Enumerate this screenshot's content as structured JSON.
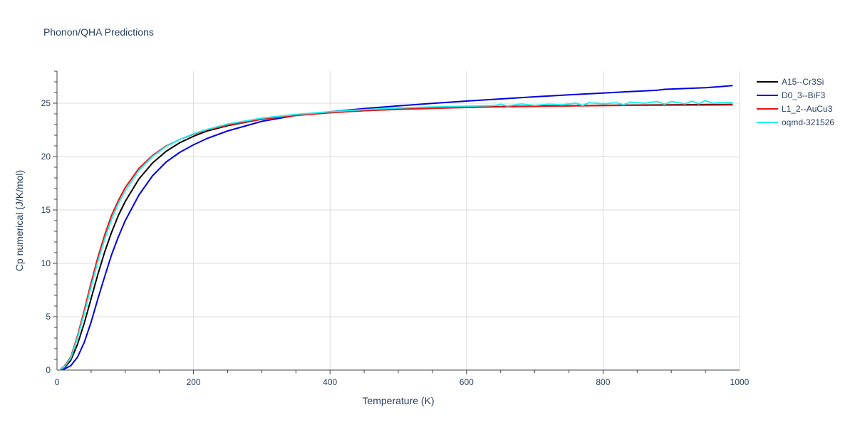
{
  "chart_data": {
    "type": "line",
    "title": "Phonon/QHA Predictions",
    "xlabel": "Temperature (K)",
    "ylabel": "Cp numerical (J/K/mol)",
    "xlim": [
      0,
      1000
    ],
    "ylim": [
      0,
      28
    ],
    "xticks": [
      0,
      200,
      400,
      600,
      800,
      1000
    ],
    "yticks": [
      0,
      5,
      10,
      15,
      20,
      25
    ],
    "grid": true,
    "legend_position": "top-right",
    "series": [
      {
        "name": "A15--Cr3Si",
        "color": "#000000",
        "x": [
          5,
          10,
          20,
          30,
          40,
          50,
          60,
          70,
          80,
          90,
          100,
          120,
          140,
          160,
          180,
          200,
          220,
          250,
          300,
          350,
          400,
          450,
          500,
          550,
          600,
          650,
          700,
          750,
          800,
          850,
          900,
          950,
          990
        ],
        "y": [
          0.05,
          0.15,
          0.9,
          2.4,
          4.4,
          6.7,
          9.0,
          11.1,
          12.9,
          14.5,
          15.8,
          17.9,
          19.4,
          20.5,
          21.3,
          21.9,
          22.4,
          22.9,
          23.5,
          23.9,
          24.15,
          24.3,
          24.45,
          24.55,
          24.62,
          24.68,
          24.72,
          24.76,
          24.8,
          24.83,
          24.85,
          24.87,
          24.88
        ]
      },
      {
        "name": "D0_3--BiF3",
        "color": "#0000dd",
        "x": [
          5,
          10,
          20,
          30,
          40,
          50,
          60,
          70,
          80,
          90,
          100,
          120,
          140,
          160,
          180,
          200,
          220,
          250,
          300,
          350,
          400,
          450,
          500,
          550,
          600,
          650,
          700,
          750,
          800,
          850,
          880,
          890,
          950,
          990
        ],
        "y": [
          0.02,
          0.08,
          0.4,
          1.2,
          2.6,
          4.5,
          6.7,
          8.8,
          10.8,
          12.5,
          14.0,
          16.4,
          18.2,
          19.5,
          20.4,
          21.1,
          21.7,
          22.4,
          23.3,
          23.85,
          24.2,
          24.5,
          24.75,
          24.98,
          25.2,
          25.4,
          25.6,
          25.78,
          25.95,
          26.12,
          26.22,
          26.3,
          26.45,
          26.65
        ]
      },
      {
        "name": "L1_2--AuCu3",
        "color": "#ee1111",
        "x": [
          5,
          10,
          20,
          30,
          40,
          50,
          60,
          70,
          80,
          90,
          100,
          120,
          140,
          160,
          180,
          200,
          220,
          250,
          300,
          350,
          400,
          450,
          500,
          550,
          600,
          650,
          700,
          750,
          800,
          850,
          900,
          950,
          990
        ],
        "y": [
          0.1,
          0.3,
          1.2,
          3.2,
          5.6,
          8.2,
          10.6,
          12.7,
          14.5,
          15.9,
          17.1,
          18.9,
          20.1,
          21.0,
          21.6,
          22.1,
          22.5,
          22.95,
          23.5,
          23.85,
          24.1,
          24.3,
          24.42,
          24.52,
          24.6,
          24.66,
          24.7,
          24.74,
          24.77,
          24.8,
          24.82,
          24.83,
          24.84
        ]
      },
      {
        "name": "oqmd-321526",
        "color": "#22eeee",
        "x": [
          5,
          10,
          20,
          30,
          40,
          50,
          60,
          70,
          80,
          90,
          100,
          120,
          140,
          160,
          180,
          200,
          220,
          250,
          300,
          350,
          400,
          450,
          500,
          550,
          600,
          640,
          650,
          660,
          680,
          700,
          720,
          740,
          760,
          770,
          780,
          800,
          820,
          830,
          840,
          860,
          880,
          890,
          900,
          920,
          930,
          940,
          950,
          960,
          970,
          990
        ],
        "y": [
          0.08,
          0.25,
          1.1,
          3.0,
          5.3,
          7.8,
          10.2,
          12.3,
          14.1,
          15.6,
          16.8,
          18.7,
          20.0,
          20.95,
          21.6,
          22.15,
          22.55,
          23.05,
          23.6,
          23.95,
          24.2,
          24.4,
          24.55,
          24.65,
          24.72,
          24.78,
          24.9,
          24.75,
          24.92,
          24.8,
          24.9,
          24.85,
          25.0,
          24.8,
          25.05,
          24.95,
          25.05,
          24.85,
          25.1,
          25.0,
          25.15,
          24.9,
          25.15,
          24.95,
          25.2,
          24.95,
          25.25,
          25.0,
          25.05,
          25.05
        ]
      }
    ]
  }
}
